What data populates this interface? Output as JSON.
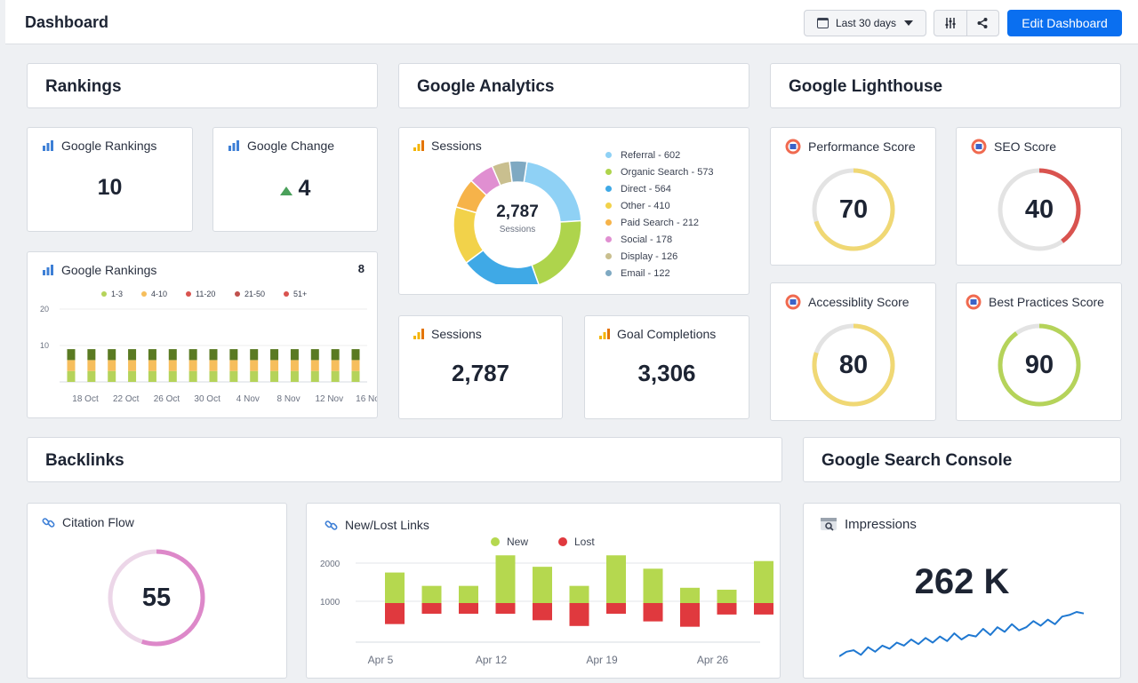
{
  "header": {
    "title": "Dashboard",
    "date_range": "Last 30 days",
    "edit_label": "Edit Dashboard"
  },
  "sections": {
    "rankings": "Rankings",
    "analytics": "Google Analytics",
    "lighthouse": "Google Lighthouse",
    "backlinks": "Backlinks",
    "search_console": "Google Search Console"
  },
  "rankings": {
    "google_rankings": {
      "label": "Google Rankings",
      "value": "10"
    },
    "google_change": {
      "label": "Google Change",
      "value": "4"
    }
  },
  "analytics": {
    "sessions_title": "Sessions",
    "donut_total": "2,787",
    "donut_caption": "Sessions",
    "sessions_card": {
      "label": "Sessions",
      "value": "2,787"
    },
    "goals_card": {
      "label": "Goal Completions",
      "value": "3,306"
    }
  },
  "lighthouse": {
    "performance": {
      "label": "Performance Score",
      "value": "70"
    },
    "seo": {
      "label": "SEO Score",
      "value": "40"
    },
    "accessibility": {
      "label": "Accessiblity Score",
      "value": "80"
    },
    "best_practices": {
      "label": "Best Practices Score",
      "value": "90"
    }
  },
  "backlinks": {
    "citation_flow": {
      "label": "Citation Flow",
      "value": "55"
    },
    "new_lost_title": "New/Lost Links"
  },
  "search_console": {
    "impressions": {
      "label": "Impressions",
      "value": "262 K"
    }
  },
  "colors": {
    "accent": "#0a6ff0",
    "yellow_gauge": "#f0d874",
    "red_gauge": "#d9534f",
    "green_gauge": "#b5d35a",
    "pink_gauge": "#dd88c9",
    "new": "#b5d84f",
    "lost": "#e0393e"
  },
  "chart_data": [
    {
      "type": "pie",
      "title": "Sessions",
      "categories": [
        "Referral",
        "Organic Search",
        "Direct",
        "Other",
        "Paid Search",
        "Social",
        "Display",
        "Email"
      ],
      "legend_labels": [
        "Referral - 602",
        "Organic Search - 573",
        "Direct - 564",
        "Other - 410",
        "Paid Search - 212",
        "Social - 178",
        "Display - 126",
        "Email - 122"
      ],
      "values": [
        602,
        573,
        564,
        410,
        212,
        178,
        126,
        122
      ],
      "colors": [
        "#8fd1f5",
        "#aed44c",
        "#3fa9e6",
        "#f2d24a",
        "#f6b34a",
        "#e08fd1",
        "#c9bf8f",
        "#7fa9c2"
      ],
      "legend_position": "right"
    },
    {
      "type": "bar",
      "title": "Google Rankings",
      "total_label": "8",
      "categories": [
        "18 Oct",
        "",
        "22 Oct",
        "",
        "26 Oct",
        "",
        "30 Oct",
        "",
        "4 Nov",
        "",
        "8 Nov",
        "",
        "12 Nov",
        "",
        "16 Nov"
      ],
      "tick_labels": [
        "18 Oct",
        "22 Oct",
        "26 Oct",
        "30 Oct",
        "4 Nov",
        "8 Nov",
        "12 Nov",
        "16 Nov"
      ],
      "series": [
        {
          "name": "1-3",
          "color": "#b5d35a",
          "values": [
            3,
            3,
            3,
            3,
            3,
            3,
            3,
            3,
            3,
            3,
            3,
            3,
            3,
            3,
            3
          ]
        },
        {
          "name": "4-10",
          "color": "#f6be5c",
          "values": [
            3,
            3,
            3,
            3,
            3,
            3,
            3,
            3,
            3,
            3,
            3,
            3,
            3,
            3,
            3
          ]
        },
        {
          "name": "11-20",
          "color": "#d9534f",
          "values": [
            0,
            0,
            0,
            0,
            0,
            0,
            0,
            0,
            0,
            0,
            0,
            0,
            0,
            0,
            0
          ]
        },
        {
          "name": "21-50",
          "color": "#c0504d",
          "values": [
            0,
            0,
            0,
            0,
            0,
            0,
            0,
            0,
            0,
            0,
            0,
            0,
            0,
            0,
            0
          ]
        },
        {
          "name": "51+",
          "color": "#d9534f",
          "values": [
            0,
            0,
            0,
            0,
            0,
            0,
            0,
            0,
            0,
            0,
            0,
            0,
            0,
            0,
            0
          ]
        },
        {
          "name": "",
          "color": "#5a7a22",
          "values": [
            3,
            3,
            3,
            3,
            3,
            3,
            3,
            3,
            3,
            3,
            3,
            3,
            3,
            3,
            3
          ]
        }
      ],
      "y_ticks": [
        10,
        20
      ],
      "ylim": [
        0,
        20
      ],
      "legend_position": "top"
    },
    {
      "type": "bar",
      "title": "New/Lost Links",
      "x": [
        "Apr 5",
        "",
        "",
        "Apr 12",
        "",
        "",
        "Apr 19",
        "",
        "",
        "Apr 26",
        ""
      ],
      "tick_labels": [
        "Apr 5",
        "Apr 12",
        "Apr 19",
        "Apr 26"
      ],
      "series": [
        {
          "name": "New",
          "color": "#b5d84f",
          "values": [
            800,
            450,
            450,
            1250,
            950,
            450,
            1250,
            900,
            400,
            350,
            1100
          ]
        },
        {
          "name": "Lost",
          "color": "#e0393e",
          "values": [
            -550,
            -280,
            -280,
            -280,
            -450,
            -600,
            -280,
            -480,
            -620,
            -300,
            -300
          ]
        }
      ],
      "y_ticks": [
        1000,
        2000
      ],
      "ylim": [
        -1200,
        2200
      ],
      "baseline": 1000,
      "legend_position": "top"
    },
    {
      "type": "line",
      "title": "Impressions",
      "values": [
        3,
        6,
        7,
        4,
        9,
        6,
        10,
        8,
        12,
        10,
        14,
        11,
        15,
        12,
        16,
        13,
        18,
        14,
        17,
        16,
        21,
        17,
        22,
        19,
        24,
        20,
        22,
        26,
        23,
        27,
        24,
        29,
        30,
        32,
        31
      ],
      "grid": false
    }
  ]
}
